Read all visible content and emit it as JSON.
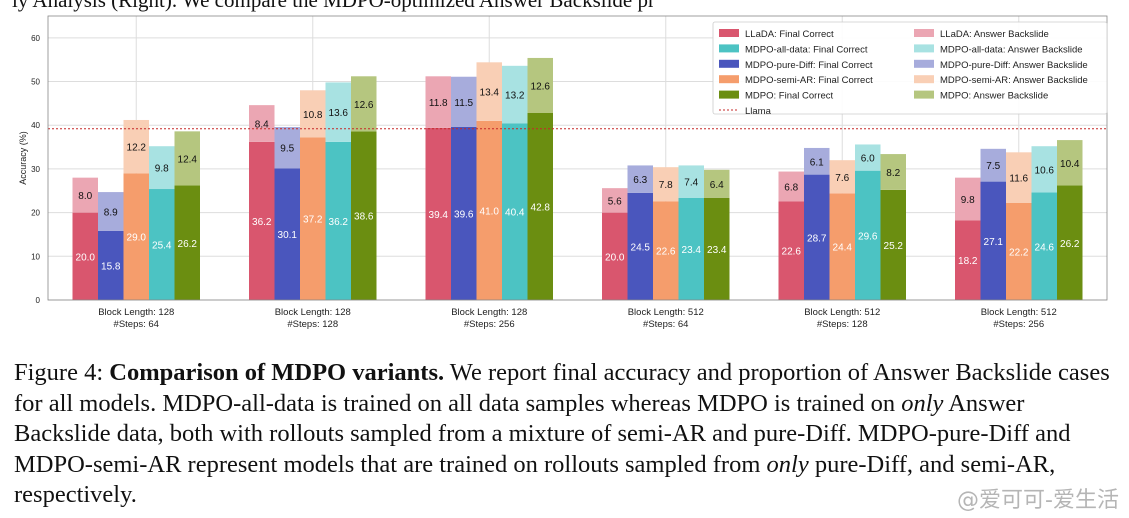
{
  "top_text": "ly Analysis (Right). We compare the MDPO-optimized Answer Backslide pr",
  "caption": {
    "label": "Figure 4:",
    "bold": "Comparison of MDPO variants.",
    "t1": " We report final accuracy and proportion of Answer Backslide cases for all models. MDPO-all-data is trained on all data samples whereas MDPO is trained on ",
    "i1": "only",
    "t2": " Answer Backslide data, both with rollouts sampled from a mixture of semi-AR and pure-Diff. MDPO-pure-Diff and MDPO-semi-AR represent models that are trained on rollouts sampled from ",
    "i2": "only",
    "t3": " pure-Diff, and semi-AR, respectively."
  },
  "watermark": "@爱可可-爱生活",
  "chart_data": {
    "type": "bar",
    "ylabel": "Accuracy (%)",
    "ylim": [
      0,
      65
    ],
    "yticks": [
      0,
      10,
      20,
      30,
      40,
      50,
      60
    ],
    "grid": true,
    "legend_position": "top-right",
    "reference_line": {
      "name": "Llama",
      "value": 39.2,
      "color": "#c62828"
    },
    "categories": [
      [
        "Block Length: 128",
        "#Steps: 64"
      ],
      [
        "Block Length: 128",
        "#Steps: 128"
      ],
      [
        "Block Length: 128",
        "#Steps: 256"
      ],
      [
        "Block Length: 512",
        "#Steps: 64"
      ],
      [
        "Block Length: 512",
        "#Steps: 128"
      ],
      [
        "Block Length: 512",
        "#Steps: 256"
      ]
    ],
    "series": [
      {
        "model": "LLaDA",
        "correct_label": "LLaDA: Final Correct",
        "backslide_label": "LLaDA: Answer Backslide",
        "color": "#d9566e",
        "light_color": "#eba6b3",
        "correct": [
          20.0,
          36.2,
          39.4,
          20.0,
          22.6,
          18.2
        ],
        "backslide": [
          8.0,
          8.4,
          11.8,
          5.6,
          6.8,
          9.8
        ]
      },
      {
        "model": "MDPO-all-data",
        "correct_label": "MDPO-all-data: Final Correct",
        "backslide_label": "MDPO-all-data: Answer Backslide",
        "color": "#4cc3c3",
        "light_color": "#a8e2e2",
        "correct": [
          25.4,
          36.2,
          40.4,
          23.4,
          29.6,
          24.6
        ],
        "backslide": [
          9.8,
          13.6,
          13.2,
          7.4,
          6.0,
          10.6
        ]
      },
      {
        "model": "MDPO-pure-Diff",
        "correct_label": "MDPO-pure-Diff: Final Correct",
        "backslide_label": "MDPO-pure-Diff: Answer Backslide",
        "color": "#4a56bd",
        "light_color": "#a7acdc",
        "correct": [
          15.8,
          30.1,
          39.6,
          24.5,
          28.7,
          27.1
        ],
        "backslide": [
          8.9,
          9.5,
          11.5,
          6.3,
          6.1,
          7.5
        ]
      },
      {
        "model": "MDPO-semi-AR",
        "correct_label": "MDPO-semi-AR: Final Correct",
        "backslide_label": "MDPO-semi-AR: Answer Backslide",
        "color": "#f59d6c",
        "light_color": "#f9cfb5",
        "correct": [
          29.0,
          37.2,
          41.0,
          22.6,
          24.4,
          22.2
        ],
        "backslide": [
          12.2,
          10.8,
          13.4,
          7.8,
          7.6,
          11.6
        ]
      },
      {
        "model": "MDPO",
        "correct_label": "MDPO: Final Correct",
        "backslide_label": "MDPO: Answer Backslide",
        "color": "#6b8e11",
        "light_color": "#b5c67f",
        "correct": [
          26.2,
          38.6,
          42.8,
          23.4,
          25.2,
          26.2
        ],
        "backslide": [
          12.4,
          12.6,
          12.6,
          6.4,
          8.2,
          10.4
        ]
      }
    ],
    "bar_order": [
      "LLaDA",
      "MDPO-pure-Diff",
      "MDPO-semi-AR",
      "MDPO-all-data",
      "MDPO"
    ],
    "legend_order": [
      [
        "LLaDA",
        "correct"
      ],
      [
        "LLaDA",
        "backslide"
      ],
      [
        "MDPO-all-data",
        "correct"
      ],
      [
        "MDPO-all-data",
        "backslide"
      ],
      [
        "MDPO-pure-Diff",
        "correct"
      ],
      [
        "MDPO-pure-Diff",
        "backslide"
      ],
      [
        "MDPO-semi-AR",
        "correct"
      ],
      [
        "MDPO-semi-AR",
        "backslide"
      ],
      [
        "MDPO",
        "correct"
      ],
      [
        "MDPO",
        "backslide"
      ],
      [
        "Llama",
        "line"
      ]
    ]
  }
}
